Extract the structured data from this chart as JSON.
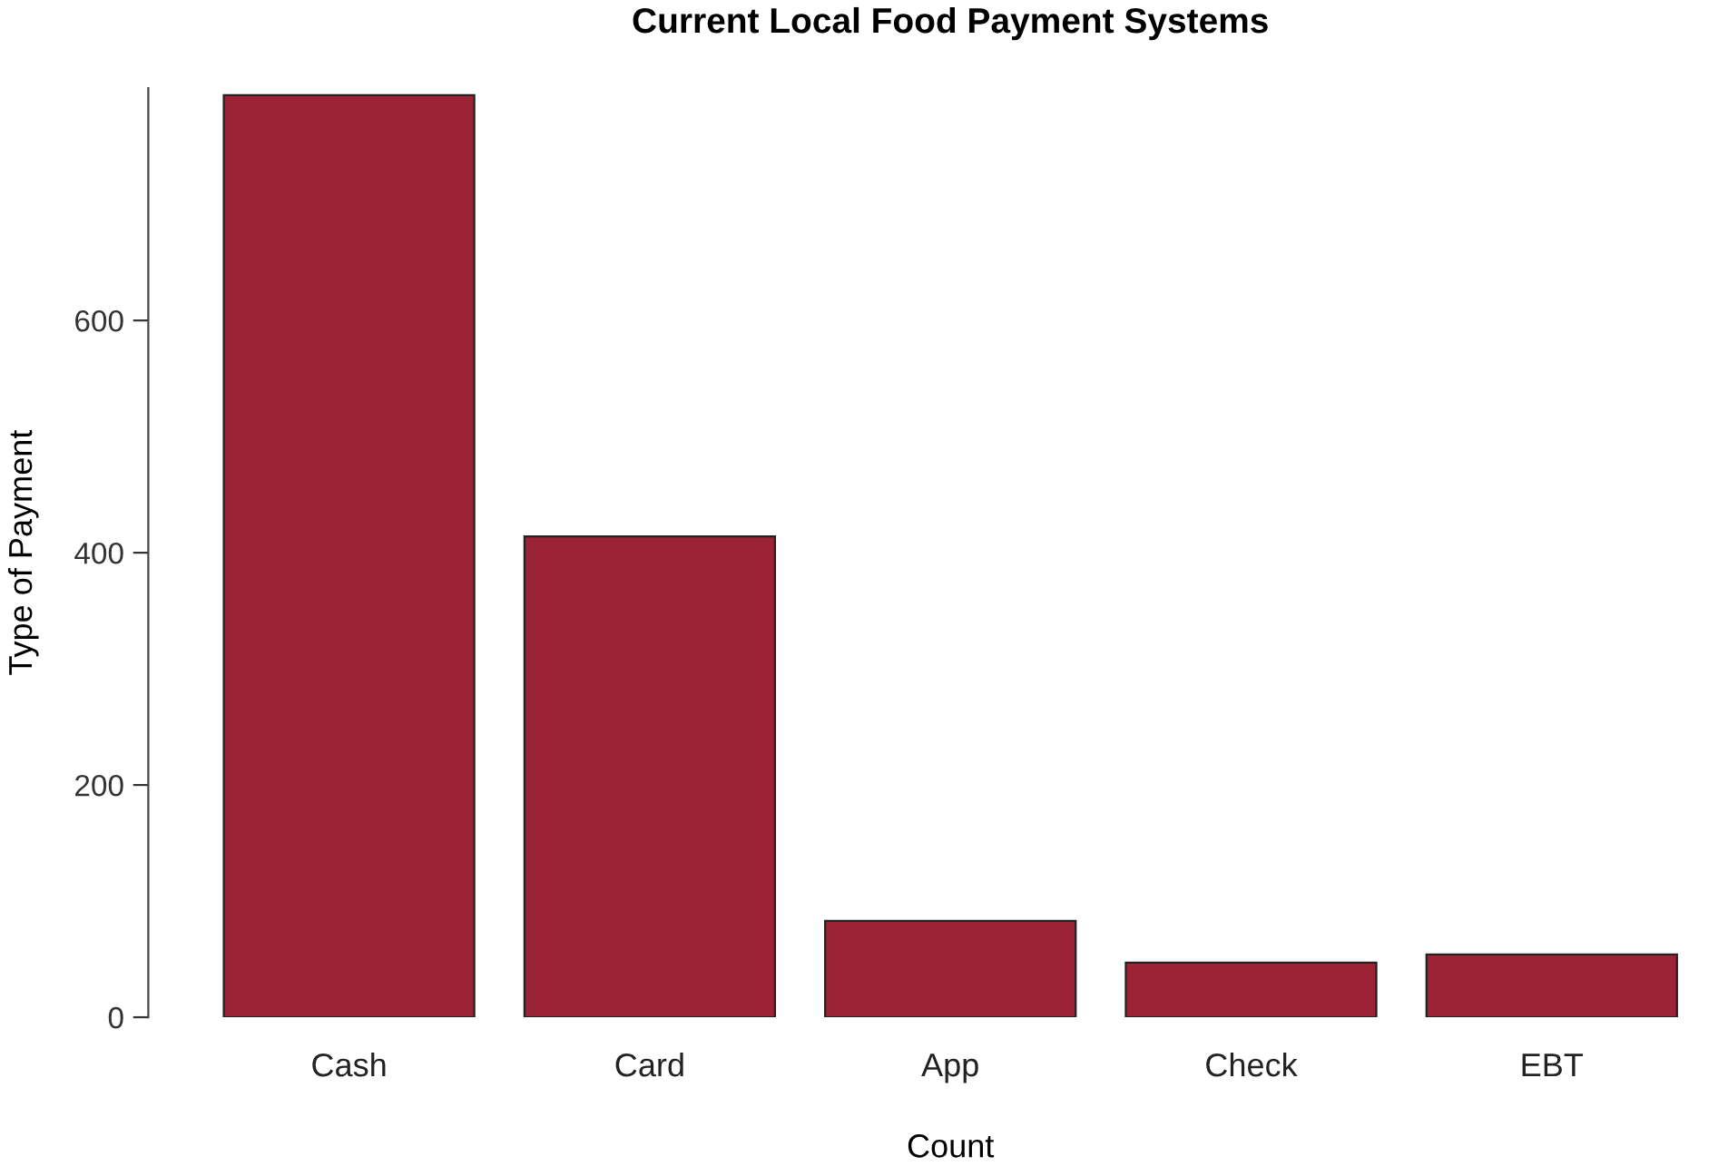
{
  "chart_data": {
    "type": "bar",
    "title": "Current Local Food Payment Systems",
    "xlabel": "Count",
    "ylabel": "Type of Payment",
    "categories": [
      "Cash",
      "Card",
      "App",
      "Check",
      "EBT"
    ],
    "values": [
      794,
      414,
      83,
      47,
      54
    ],
    "color": "#9b2335",
    "ylim": [
      0,
      800
    ],
    "yticks": [
      0,
      200,
      400,
      600
    ],
    "grid": false,
    "legend": false
  }
}
